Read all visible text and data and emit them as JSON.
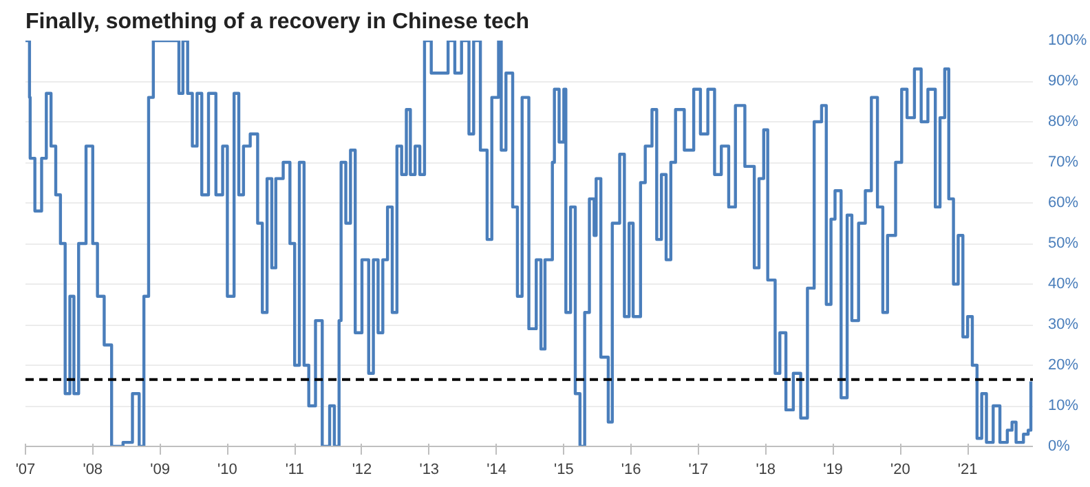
{
  "chart_data": {
    "type": "step",
    "title": "Finally, something of a recovery in Chinese tech",
    "x": [
      2007.0,
      2007.06,
      2007.07,
      2007.14,
      2007.24,
      2007.31,
      2007.38,
      2007.45,
      2007.52,
      2007.59,
      2007.66,
      2007.72,
      2007.79,
      2007.9,
      2008.0,
      2008.07,
      2008.17,
      2008.28,
      2008.45,
      2008.59,
      2008.69,
      2008.76,
      2008.83,
      2008.9,
      2009.24,
      2009.28,
      2009.34,
      2009.41,
      2009.48,
      2009.55,
      2009.62,
      2009.72,
      2009.83,
      2009.93,
      2010.0,
      2010.1,
      2010.17,
      2010.24,
      2010.34,
      2010.45,
      2010.52,
      2010.59,
      2010.66,
      2010.72,
      2010.83,
      2010.93,
      2011.0,
      2011.07,
      2011.14,
      2011.21,
      2011.31,
      2011.41,
      2011.52,
      2011.59,
      2011.66,
      2011.69,
      2011.76,
      2011.83,
      2011.9,
      2012.0,
      2012.1,
      2012.17,
      2012.24,
      2012.31,
      2012.38,
      2012.45,
      2012.52,
      2012.59,
      2012.66,
      2012.72,
      2012.79,
      2012.86,
      2012.93,
      2013.03,
      2013.28,
      2013.38,
      2013.48,
      2013.59,
      2013.66,
      2013.76,
      2013.86,
      2013.93,
      2014.03,
      2014.07,
      2014.14,
      2014.24,
      2014.31,
      2014.38,
      2014.48,
      2014.59,
      2014.66,
      2014.72,
      2014.83,
      2014.86,
      2014.93,
      2015.0,
      2015.03,
      2015.1,
      2015.17,
      2015.24,
      2015.31,
      2015.38,
      2015.45,
      2015.48,
      2015.55,
      2015.66,
      2015.72,
      2015.83,
      2015.9,
      2015.97,
      2016.03,
      2016.14,
      2016.21,
      2016.31,
      2016.38,
      2016.45,
      2016.52,
      2016.59,
      2016.66,
      2016.79,
      2016.93,
      2017.03,
      2017.14,
      2017.24,
      2017.34,
      2017.45,
      2017.55,
      2017.69,
      2017.83,
      2017.9,
      2017.97,
      2018.03,
      2018.14,
      2018.21,
      2018.3,
      2018.41,
      2018.52,
      2018.62,
      2018.72,
      2018.83,
      2018.9,
      2018.97,
      2019.03,
      2019.12,
      2019.21,
      2019.28,
      2019.38,
      2019.48,
      2019.57,
      2019.66,
      2019.74,
      2019.81,
      2019.93,
      2020.02,
      2020.1,
      2020.21,
      2020.31,
      2020.41,
      2020.52,
      2020.59,
      2020.66,
      2020.72,
      2020.79,
      2020.86,
      2020.93,
      2021.0,
      2021.07,
      2021.14,
      2021.21,
      2021.28,
      2021.38,
      2021.48,
      2021.59,
      2021.66,
      2021.72,
      2021.83,
      2021.9,
      2021.94
    ],
    "series": [
      {
        "color": "#4a7ebb",
        "values": [
          100,
          86,
          71,
          58,
          71,
          87,
          74,
          62,
          50,
          13,
          37,
          13,
          50,
          74,
          50,
          37,
          25,
          0,
          1,
          13,
          0,
          37,
          86,
          100,
          100,
          87,
          100,
          87,
          74,
          87,
          62,
          87,
          62,
          74,
          37,
          87,
          62,
          74,
          77,
          55,
          33,
          66,
          44,
          66,
          70,
          50,
          20,
          70,
          20,
          10,
          31,
          0,
          10,
          0,
          31,
          70,
          55,
          73,
          28,
          46,
          18,
          46,
          28,
          46,
          59,
          33,
          74,
          67,
          83,
          67,
          74,
          67,
          100,
          92,
          100,
          92,
          100,
          77,
          100,
          73,
          51,
          86,
          100,
          73,
          92,
          59,
          37,
          86,
          29,
          46,
          24,
          46,
          70,
          88,
          75,
          88,
          33,
          59,
          13,
          0,
          33,
          61,
          52,
          66,
          22,
          6,
          55,
          72,
          32,
          55,
          32,
          65,
          74,
          83,
          51,
          67,
          46,
          70,
          83,
          73,
          88,
          77,
          88,
          67,
          74,
          59,
          84,
          69,
          44,
          66,
          78,
          41,
          18,
          28,
          9,
          18,
          7,
          39,
          80,
          84,
          35,
          56,
          63,
          12,
          57,
          31,
          55,
          63,
          86,
          59,
          33,
          52,
          70,
          88,
          81,
          93,
          80,
          88,
          59,
          81,
          93,
          61,
          40,
          52,
          27,
          32,
          20,
          2,
          13,
          1,
          10,
          1,
          4,
          6,
          1,
          3,
          4,
          16
        ]
      }
    ],
    "xlim": [
      2007,
      2021.97
    ],
    "xticks": [
      {
        "value": 2007,
        "label": "'07"
      },
      {
        "value": 2008,
        "label": "'08"
      },
      {
        "value": 2009,
        "label": "'09"
      },
      {
        "value": 2010,
        "label": "'10"
      },
      {
        "value": 2011,
        "label": "'11"
      },
      {
        "value": 2012,
        "label": "'12"
      },
      {
        "value": 2013,
        "label": "'13"
      },
      {
        "value": 2014,
        "label": "'14"
      },
      {
        "value": 2015,
        "label": "'15"
      },
      {
        "value": 2016,
        "label": "'16"
      },
      {
        "value": 2017,
        "label": "'17"
      },
      {
        "value": 2018,
        "label": "'18"
      },
      {
        "value": 2019,
        "label": "'19"
      },
      {
        "value": 2020,
        "label": "'20"
      },
      {
        "value": 2021,
        "label": "'21"
      }
    ],
    "ylim": [
      0,
      100
    ],
    "yticks": [
      {
        "value": 0,
        "label": "0%"
      },
      {
        "value": 10,
        "label": "10%"
      },
      {
        "value": 20,
        "label": "20%"
      },
      {
        "value": 30,
        "label": "30%"
      },
      {
        "value": 40,
        "label": "40%"
      },
      {
        "value": 50,
        "label": "50%"
      },
      {
        "value": 60,
        "label": "60%"
      },
      {
        "value": 70,
        "label": "70%"
      },
      {
        "value": 80,
        "label": "80%"
      },
      {
        "value": 90,
        "label": "90%"
      },
      {
        "value": 100,
        "label": "100%"
      }
    ],
    "grid": "y",
    "ref_lines": [
      {
        "axis": "y",
        "value": 16.5,
        "color": "#000000",
        "line_style": "dashed"
      }
    ]
  }
}
